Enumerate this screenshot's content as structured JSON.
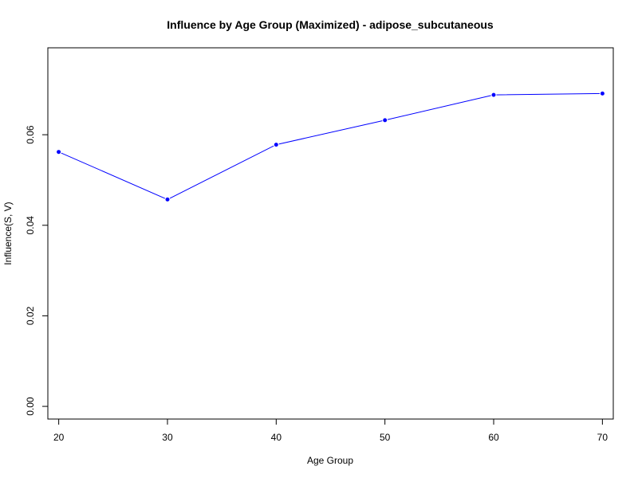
{
  "chart_data": {
    "type": "line",
    "title": "Influence by Age Group (Maximized) - adipose_subcutaneous",
    "xlabel": "Age Group",
    "ylabel": "Influence(S, V)",
    "x": [
      20,
      30,
      40,
      50,
      60,
      70
    ],
    "x_ticks": [
      "20",
      "30",
      "40",
      "50",
      "60",
      "70"
    ],
    "y_ticks": [
      "0.00",
      "0.02",
      "0.04",
      "0.06"
    ],
    "y_tick_values": [
      0.0,
      0.02,
      0.04,
      0.06
    ],
    "xlim": [
      19,
      71
    ],
    "ylim": [
      -0.0028,
      0.0792
    ],
    "series": [
      {
        "values": [
          0.0562,
          0.0457,
          0.0578,
          0.0632,
          0.0688,
          0.0691
        ]
      }
    ],
    "line_color": "#0000ff",
    "marker_color": "#0000ff",
    "grid": false,
    "legend": "none"
  }
}
